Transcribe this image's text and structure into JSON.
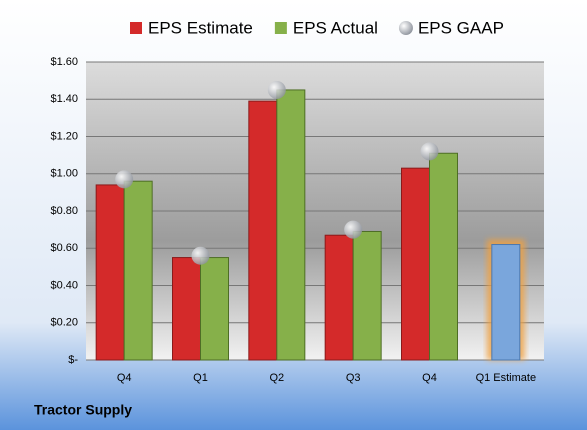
{
  "chart_data": {
    "type": "bar",
    "footer": "Tractor Supply",
    "categories": [
      "Q4",
      "Q1",
      "Q2",
      "Q3",
      "Q4",
      "Q1 Estimate"
    ],
    "series": [
      {
        "name": "EPS Estimate",
        "color": "#d42a2a",
        "values": [
          0.94,
          0.55,
          1.39,
          0.67,
          1.03,
          0.62
        ]
      },
      {
        "name": "EPS Actual",
        "color": "#86b04a",
        "values": [
          0.96,
          0.55,
          1.45,
          0.69,
          1.11,
          null
        ]
      },
      {
        "name": "EPS GAAP",
        "color": "#b8bcc4",
        "values": [
          0.97,
          0.56,
          1.45,
          0.7,
          1.12,
          null
        ],
        "marker": "circle"
      }
    ],
    "estimate_color": "#7aa6dc",
    "ylim": [
      0,
      1.6
    ],
    "yticks": [
      {
        "value": 0,
        "label": "$-"
      },
      {
        "value": 0.2,
        "label": "$0.20"
      },
      {
        "value": 0.4,
        "label": "$0.40"
      },
      {
        "value": 0.6,
        "label": "$0.60"
      },
      {
        "value": 0.8,
        "label": "$0.80"
      },
      {
        "value": 1.0,
        "label": "$1.00"
      },
      {
        "value": 1.2,
        "label": "$1.20"
      },
      {
        "value": 1.4,
        "label": "$1.40"
      },
      {
        "value": 1.6,
        "label": "$1.60"
      }
    ],
    "grid": true
  }
}
